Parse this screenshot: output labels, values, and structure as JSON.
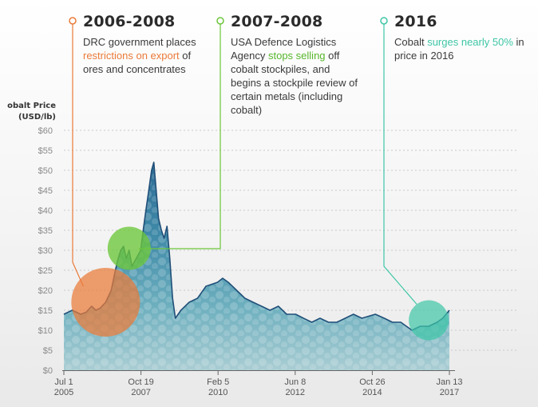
{
  "annotations": [
    {
      "year": "2006-2008",
      "text_before": "DRC government places ",
      "highlight": "restrictions on export",
      "text_after": " of ores and concentrates",
      "color": "#ea7a38"
    },
    {
      "year": "2007-2008",
      "text_before": "USA Defence Logistics Agency ",
      "highlight": "stops selling",
      "text_after": " off cobalt stockpiles, and begins a stockpile review of certain metals (including cobalt)",
      "color": "#6cc63a"
    },
    {
      "year": "2016",
      "text_before": "Cobalt ",
      "highlight": "surges nearly 50%",
      "text_after": " in price in 2016",
      "color": "#3fc6a6"
    }
  ],
  "chart_data": {
    "type": "area",
    "ylabel_line1": "obalt Price",
    "ylabel_line2": "(USD/lb)",
    "ylim": [
      0,
      60
    ],
    "y_ticks": [
      "$0",
      "$5",
      "$10",
      "$15",
      "$20",
      "$25",
      "$30",
      "$35",
      "$40",
      "$45",
      "$50",
      "$55",
      "$60"
    ],
    "x_ticks": [
      {
        "line1": "Jul 1",
        "line2": "2005"
      },
      {
        "line1": "Oct 19",
        "line2": "2007"
      },
      {
        "line1": "Feb 5",
        "line2": "2010"
      },
      {
        "line1": "Jun 8",
        "line2": "2012"
      },
      {
        "line1": "Oct 26",
        "line2": "2014"
      },
      {
        "line1": "Jan 13",
        "line2": "2017"
      }
    ],
    "series": [
      {
        "x": [
          "2005-07-01",
          "2005-10-01",
          "2006-01-01",
          "2006-03-01",
          "2006-05-01",
          "2006-06-15",
          "2006-08-01",
          "2006-10-01",
          "2006-12-01",
          "2007-01-15",
          "2007-02-15",
          "2007-03-15",
          "2007-04-15",
          "2007-05-15",
          "2007-06-15",
          "2007-07-15",
          "2007-09-01",
          "2007-10-19",
          "2007-11-15",
          "2007-12-15",
          "2008-01-15",
          "2008-02-15",
          "2008-03-10",
          "2008-04-01",
          "2008-05-01",
          "2008-06-01",
          "2008-07-01",
          "2008-08-01",
          "2008-09-01",
          "2008-10-01",
          "2008-11-01",
          "2008-12-01",
          "2009-01-01",
          "2009-04-01",
          "2009-07-01",
          "2009-10-01",
          "2010-02-05",
          "2010-04-01",
          "2010-06-01",
          "2010-09-01",
          "2010-12-01",
          "2011-03-01",
          "2011-06-01",
          "2011-09-01",
          "2011-12-01",
          "2012-03-01",
          "2012-06-08",
          "2012-09-01",
          "2012-12-01",
          "2013-03-01",
          "2013-06-01",
          "2013-09-01",
          "2013-12-01",
          "2014-03-01",
          "2014-06-01",
          "2014-10-26",
          "2015-02-01",
          "2015-05-01",
          "2015-08-01",
          "2015-10-01",
          "2015-12-01",
          "2016-03-01",
          "2016-06-01",
          "2016-09-01",
          "2016-11-01",
          "2017-01-13"
        ],
        "values": [
          14,
          15,
          14,
          14.5,
          16,
          15,
          15.5,
          17,
          20,
          25,
          28,
          30,
          31,
          28,
          30,
          26,
          28,
          30,
          35,
          40,
          45,
          50,
          52,
          46,
          38,
          35,
          33,
          36,
          28,
          18,
          13,
          14,
          15,
          17,
          18,
          21,
          22,
          23,
          22,
          20,
          18,
          17,
          16,
          15,
          16,
          14,
          14,
          13,
          12,
          13,
          12,
          12,
          13,
          14,
          13,
          14,
          13,
          12,
          12,
          11,
          10,
          11,
          11,
          12,
          13,
          15
        ]
      }
    ]
  }
}
